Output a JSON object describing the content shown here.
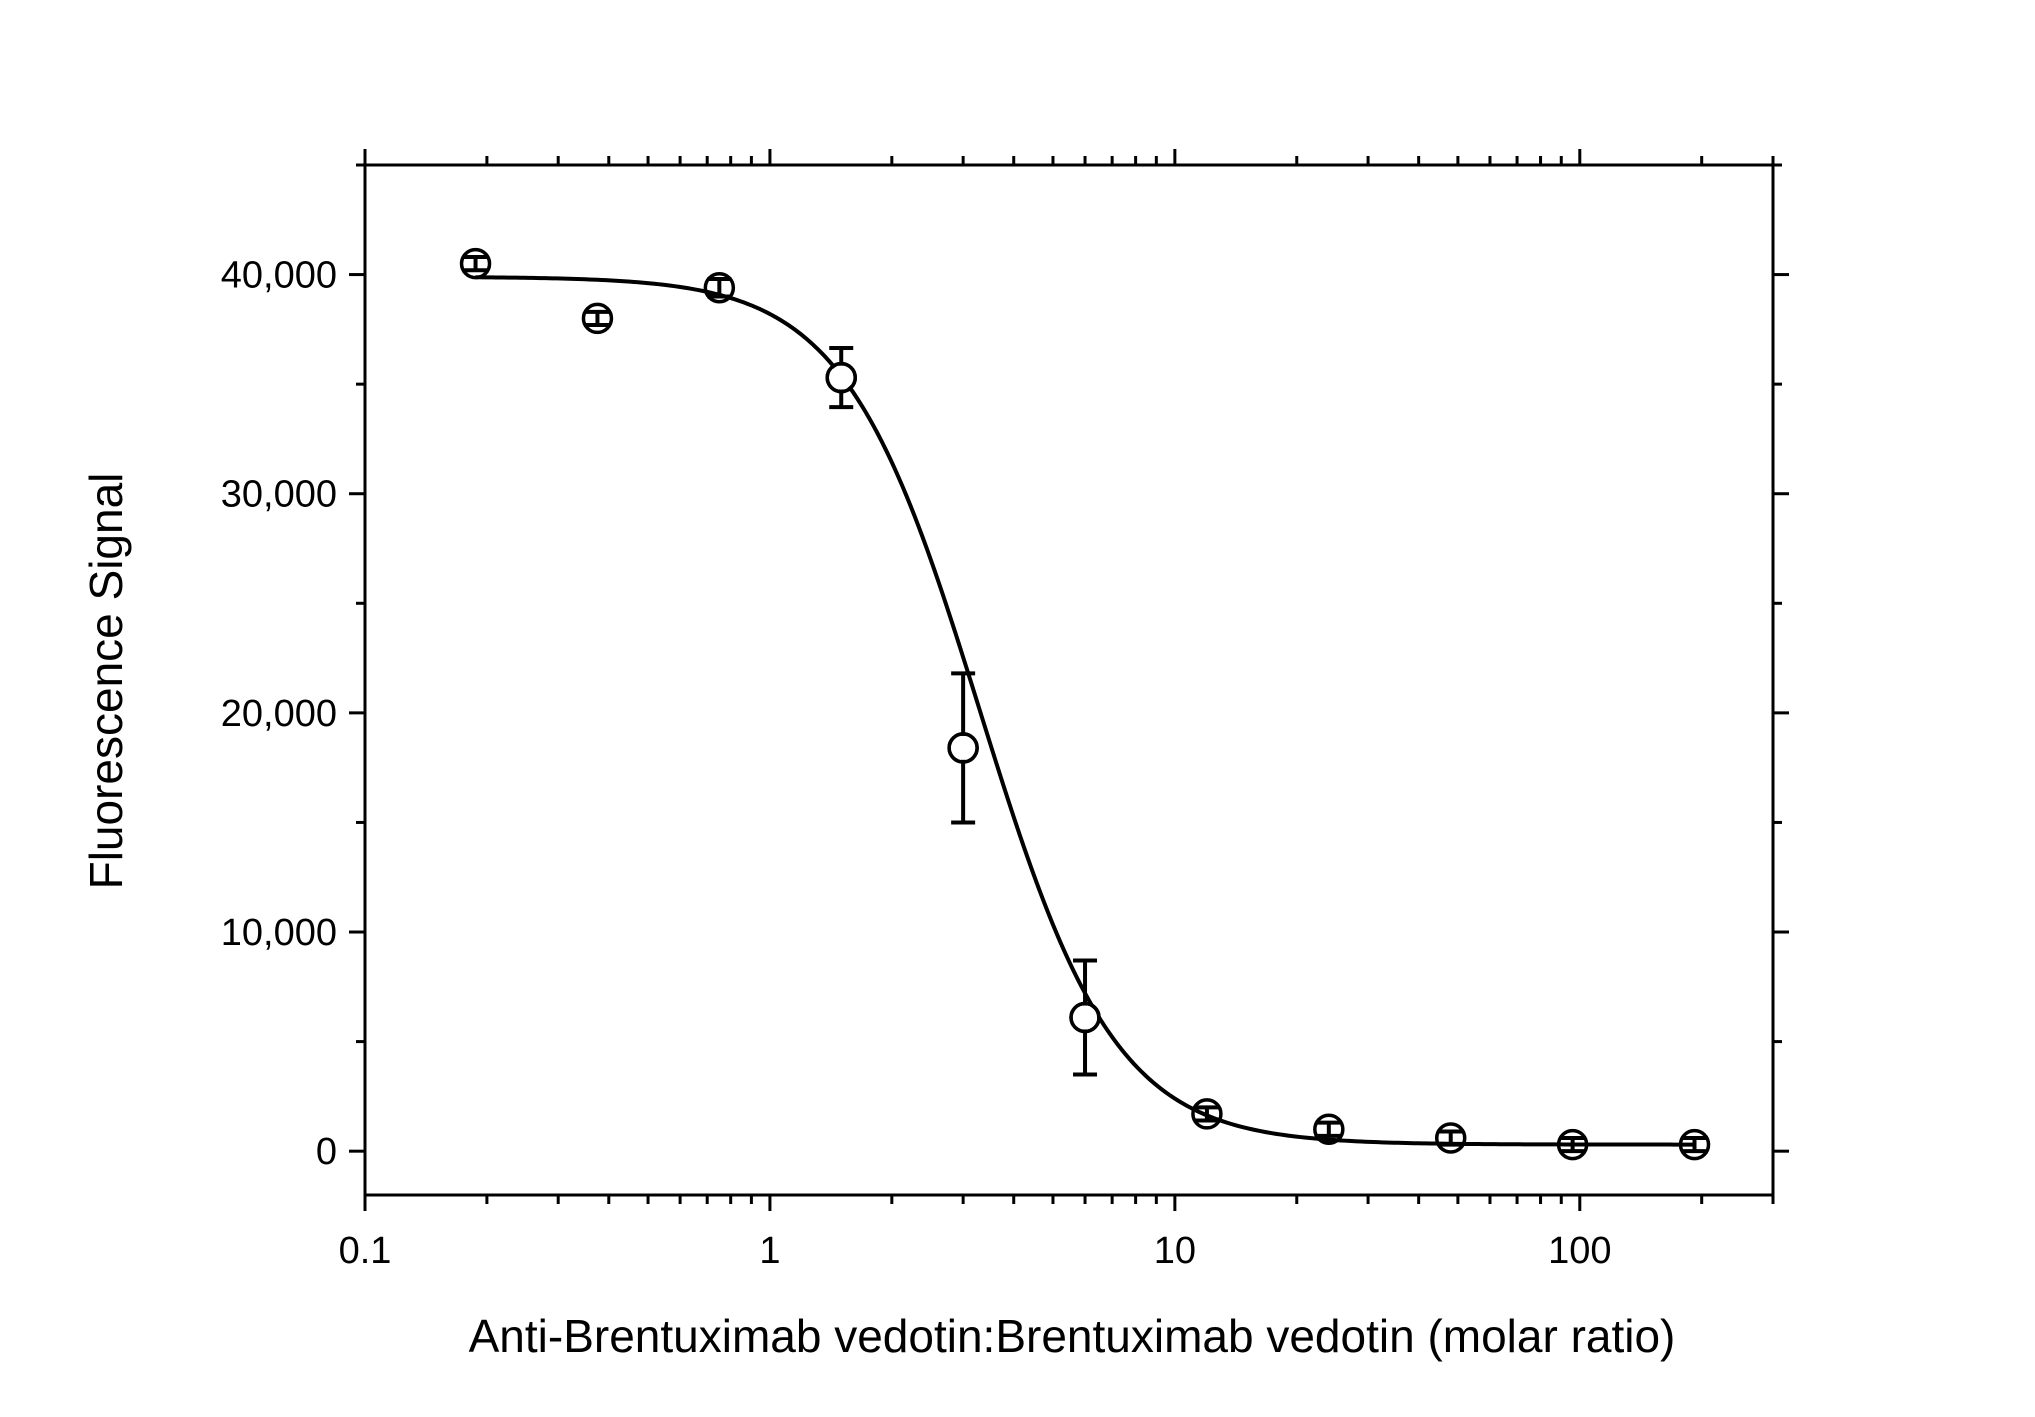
{
  "chart_data": {
    "type": "scatter",
    "xlabel": "Anti-Brentuximab vedotin:Brentuximab vedotin (molar ratio)",
    "ylabel": "Fluorescence Signal",
    "x_scale": "log",
    "xlim": [
      0.1,
      300
    ],
    "ylim": [
      -2000,
      45000
    ],
    "x_ticks": [
      {
        "value": 0.1,
        "label": "0.1"
      },
      {
        "value": 1,
        "label": "1"
      },
      {
        "value": 10,
        "label": "10"
      },
      {
        "value": 100,
        "label": "100"
      }
    ],
    "y_ticks": [
      {
        "value": 0,
        "label": "0"
      },
      {
        "value": 10000,
        "label": "10,000"
      },
      {
        "value": 20000,
        "label": "20,000"
      },
      {
        "value": 30000,
        "label": "30,000"
      },
      {
        "value": 40000,
        "label": "40,000"
      }
    ],
    "grid": false,
    "series": [
      {
        "marker": "open-circle",
        "points": [
          {
            "x": 0.1875,
            "y": 40500,
            "err": 300
          },
          {
            "x": 0.375,
            "y": 38000,
            "err": 300
          },
          {
            "x": 0.75,
            "y": 39400,
            "err": 400
          },
          {
            "x": 1.5,
            "y": 35300,
            "err": 1350
          },
          {
            "x": 3,
            "y": 18400,
            "err": 3400
          },
          {
            "x": 6,
            "y": 6100,
            "err": 2600
          },
          {
            "x": 12,
            "y": 1700,
            "err": 300
          },
          {
            "x": 24,
            "y": 1000,
            "err": 300
          },
          {
            "x": 48,
            "y": 600,
            "err": 300
          },
          {
            "x": 96,
            "y": 300,
            "err": 300
          },
          {
            "x": 192,
            "y": 300,
            "err": 300
          }
        ]
      }
    ],
    "fit_curve": {
      "model": "4PL",
      "top": 39900,
      "bottom": 300,
      "ec50": 3.3,
      "hill": 2.6,
      "x_range": [
        0.1875,
        192
      ]
    }
  }
}
